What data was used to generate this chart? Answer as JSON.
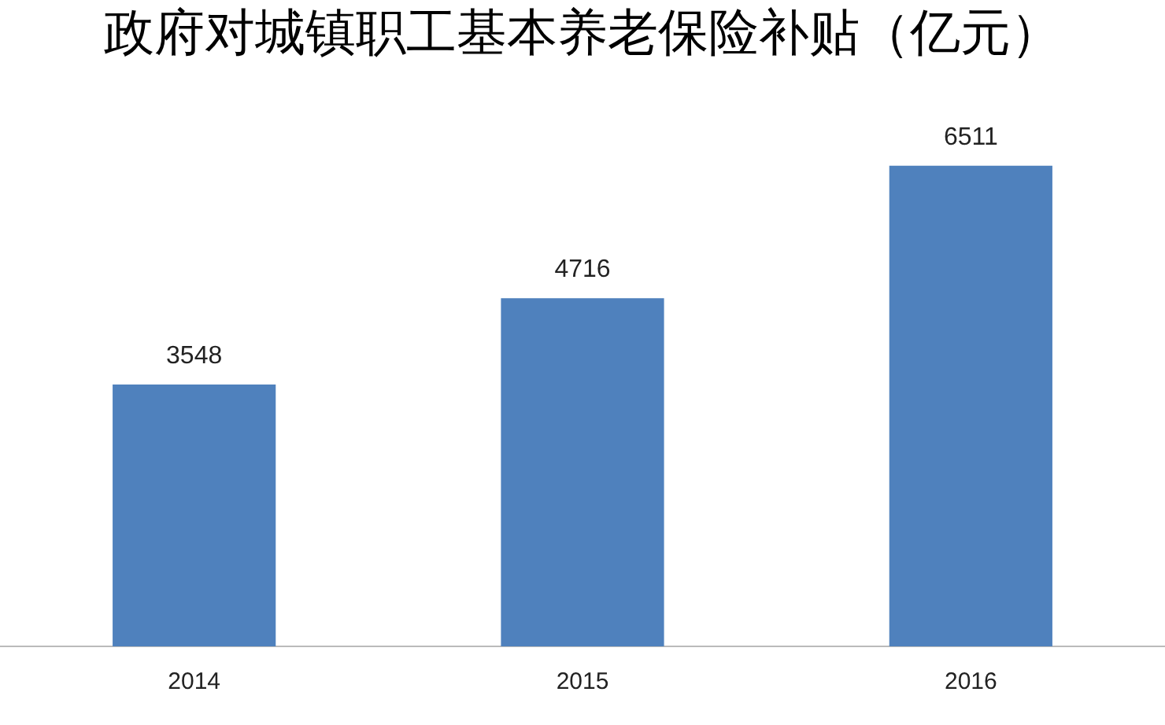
{
  "chart_data": {
    "type": "bar",
    "title": "政府对城镇职工基本养老保险补贴（亿元）",
    "categories": [
      "2014",
      "2015",
      "2016"
    ],
    "values": [
      3548,
      4716,
      6511
    ],
    "color": "#4f81bd",
    "data_labels": true,
    "legend": false,
    "grid": false
  }
}
